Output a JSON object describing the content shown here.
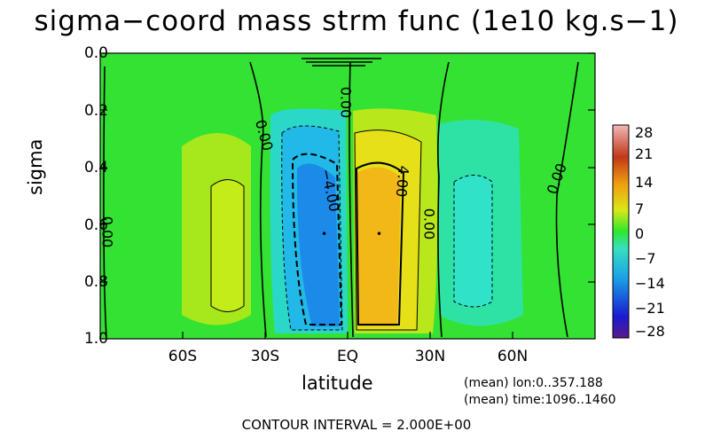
{
  "chart_data": {
    "type": "heatmap",
    "title": "sigma−coord mass strm func (1e10 kg.s−1)",
    "xlabel": "latitude",
    "ylabel": "sigma",
    "x_ticks": [
      "60S",
      "30S",
      "EQ",
      "30N",
      "60N"
    ],
    "y_ticks": [
      "0.0",
      "0.2",
      "0.4",
      "0.6",
      "0.8",
      "1.0"
    ],
    "xlim": [
      -90,
      90
    ],
    "ylim": [
      1.0,
      0.0
    ],
    "contour_labels": [
      "0.00",
      "0.00",
      "0.00",
      "0.00",
      "0.00",
      "−4.00",
      "4.00"
    ],
    "colorbar": {
      "ticks": [
        "28",
        "21",
        "14",
        "7",
        "0",
        "−7",
        "−14",
        "−21",
        "−28"
      ],
      "range": [
        -28,
        28
      ]
    },
    "cells": [
      {
        "lat": -45,
        "sigma": 0.62,
        "value": 3
      },
      {
        "lat": -12,
        "sigma": 0.62,
        "value": -9
      },
      {
        "lat": 9,
        "sigma": 0.62,
        "value": 9
      },
      {
        "lat": 40,
        "sigma": 0.62,
        "value": -3
      }
    ]
  },
  "annotations": {
    "mean_lon": "(mean) lon:0..357.188",
    "mean_time": "(mean) time:1096..1460",
    "contour_interval": "CONTOUR INTERVAL = 2.000E+00"
  }
}
